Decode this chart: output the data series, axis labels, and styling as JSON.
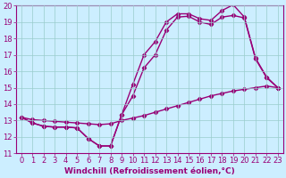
{
  "xlabel": "Windchill (Refroidissement éolien,°C)",
  "bg_color": "#cceeff",
  "line_color": "#990077",
  "grid_color": "#99cccc",
  "xlim": [
    -0.5,
    23.5
  ],
  "ylim": [
    11,
    20
  ],
  "yticks": [
    11,
    12,
    13,
    14,
    15,
    16,
    17,
    18,
    19,
    20
  ],
  "xticks": [
    0,
    1,
    2,
    3,
    4,
    5,
    6,
    7,
    8,
    9,
    10,
    11,
    12,
    13,
    14,
    15,
    16,
    17,
    18,
    19,
    20,
    21,
    22,
    23
  ],
  "line1_x": [
    0,
    1,
    2,
    3,
    4,
    5,
    6,
    7,
    8,
    9,
    10,
    11,
    12,
    13,
    14,
    15,
    16,
    17,
    18,
    19,
    20,
    21,
    22,
    23
  ],
  "line1_y": [
    13.2,
    13.05,
    13.0,
    12.95,
    12.9,
    12.85,
    12.8,
    12.75,
    12.8,
    13.0,
    13.15,
    13.3,
    13.5,
    13.7,
    13.9,
    14.1,
    14.3,
    14.5,
    14.65,
    14.8,
    14.9,
    15.0,
    15.1,
    15.0
  ],
  "line2_x": [
    0,
    1,
    2,
    3,
    4,
    5,
    6,
    7,
    8,
    9,
    10,
    11,
    12,
    13,
    14,
    15,
    16,
    17,
    18,
    19,
    20,
    21,
    22,
    23
  ],
  "line2_y": [
    13.2,
    12.85,
    12.65,
    12.6,
    12.6,
    12.55,
    11.9,
    11.45,
    11.45,
    13.35,
    14.5,
    16.2,
    17.0,
    18.5,
    19.3,
    19.35,
    19.0,
    18.85,
    19.3,
    19.4,
    19.25,
    16.75,
    15.6,
    15.0
  ],
  "line3_x": [
    0,
    1,
    2,
    3,
    4,
    5,
    6,
    7,
    8,
    9,
    10,
    11,
    12,
    13,
    14,
    15,
    16,
    17,
    18,
    19,
    20,
    21,
    22,
    23
  ],
  "line3_y": [
    13.2,
    12.85,
    12.65,
    12.6,
    12.6,
    12.55,
    11.9,
    11.45,
    11.45,
    13.35,
    15.2,
    17.0,
    17.8,
    19.0,
    19.5,
    19.5,
    19.2,
    19.1,
    19.7,
    20.05,
    19.3,
    16.8,
    15.65,
    15.0
  ],
  "marker": "D",
  "markersize": 2.2,
  "linewidth": 1.0,
  "xlabel_fontsize": 6.5,
  "tick_fontsize": 6.0
}
